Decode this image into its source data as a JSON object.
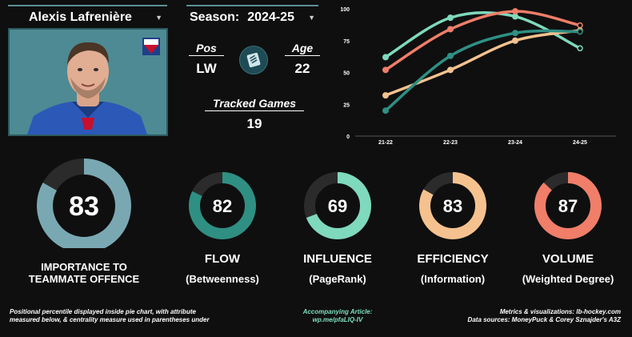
{
  "player": {
    "name": "Alexis Lafrenière"
  },
  "season": {
    "label": "Season:",
    "value": "2024-25"
  },
  "position": {
    "label": "Pos",
    "value": "LW"
  },
  "age": {
    "label": "Age",
    "value": "22"
  },
  "tracked_games": {
    "label": "Tracked Games",
    "value": "19"
  },
  "icons": {
    "caret": "caret-down-icon",
    "team": "team-logo-icon",
    "photo": "player-headshot"
  },
  "colors": {
    "background": "#0f0f0f",
    "track": "#2b2b2b",
    "importance": "#79a8b3",
    "flow": "#2f8f83",
    "influence": "#7fd9bd",
    "efficiency": "#f5c28f",
    "volume": "#f07e69"
  },
  "metrics": [
    {
      "key": "importance",
      "percentile": 83,
      "name": "IMPORTANCE TO",
      "name2": "TEAMMATE OFFENCE",
      "sub": "",
      "color": "#79a8b3"
    },
    {
      "key": "flow",
      "percentile": 82,
      "name": "FLOW",
      "sub": "(Betweenness)",
      "color": "#2f8f83"
    },
    {
      "key": "influence",
      "percentile": 69,
      "name": "INFLUENCE",
      "sub": "(PageRank)",
      "color": "#7fd9bd"
    },
    {
      "key": "efficiency",
      "percentile": 83,
      "name": "EFFICIENCY",
      "sub": "(Information)",
      "color": "#f5c28f"
    },
    {
      "key": "volume",
      "percentile": 87,
      "name": "VOLUME",
      "sub": "(Weighted Degree)",
      "color": "#f07e69"
    }
  ],
  "chart_data": {
    "type": "line",
    "categories": [
      "21-22",
      "22-23",
      "23-24",
      "24-25"
    ],
    "ylim": [
      0,
      100
    ],
    "yticks": [
      "0",
      "25",
      "50",
      "75",
      "100"
    ],
    "grid": false,
    "series": [
      {
        "key": "influence",
        "color": "#7fd9bd",
        "values": [
          62,
          93,
          94,
          69
        ]
      },
      {
        "key": "volume",
        "color": "#f07e69",
        "values": [
          52,
          84,
          98,
          87
        ]
      },
      {
        "key": "efficiency",
        "color": "#f5c28f",
        "values": [
          32,
          52,
          75,
          83
        ]
      },
      {
        "key": "flow",
        "color": "#2f8f83",
        "values": [
          20,
          63,
          81,
          82
        ]
      }
    ]
  },
  "footer": {
    "left_line1": "Positional percentile displayed inside pie chart, with attribute",
    "left_line2": "measured below, & centrality measure used in parentheses under",
    "center_line1": "Accompanying Article:",
    "center_line2": "wp.me/pfaLIQ-IV",
    "right_line1": "Metrics & visualizations: lb-hockey.com",
    "right_line2": "Data sources: MoneyPuck & Corey Sznajder's A3Z"
  }
}
